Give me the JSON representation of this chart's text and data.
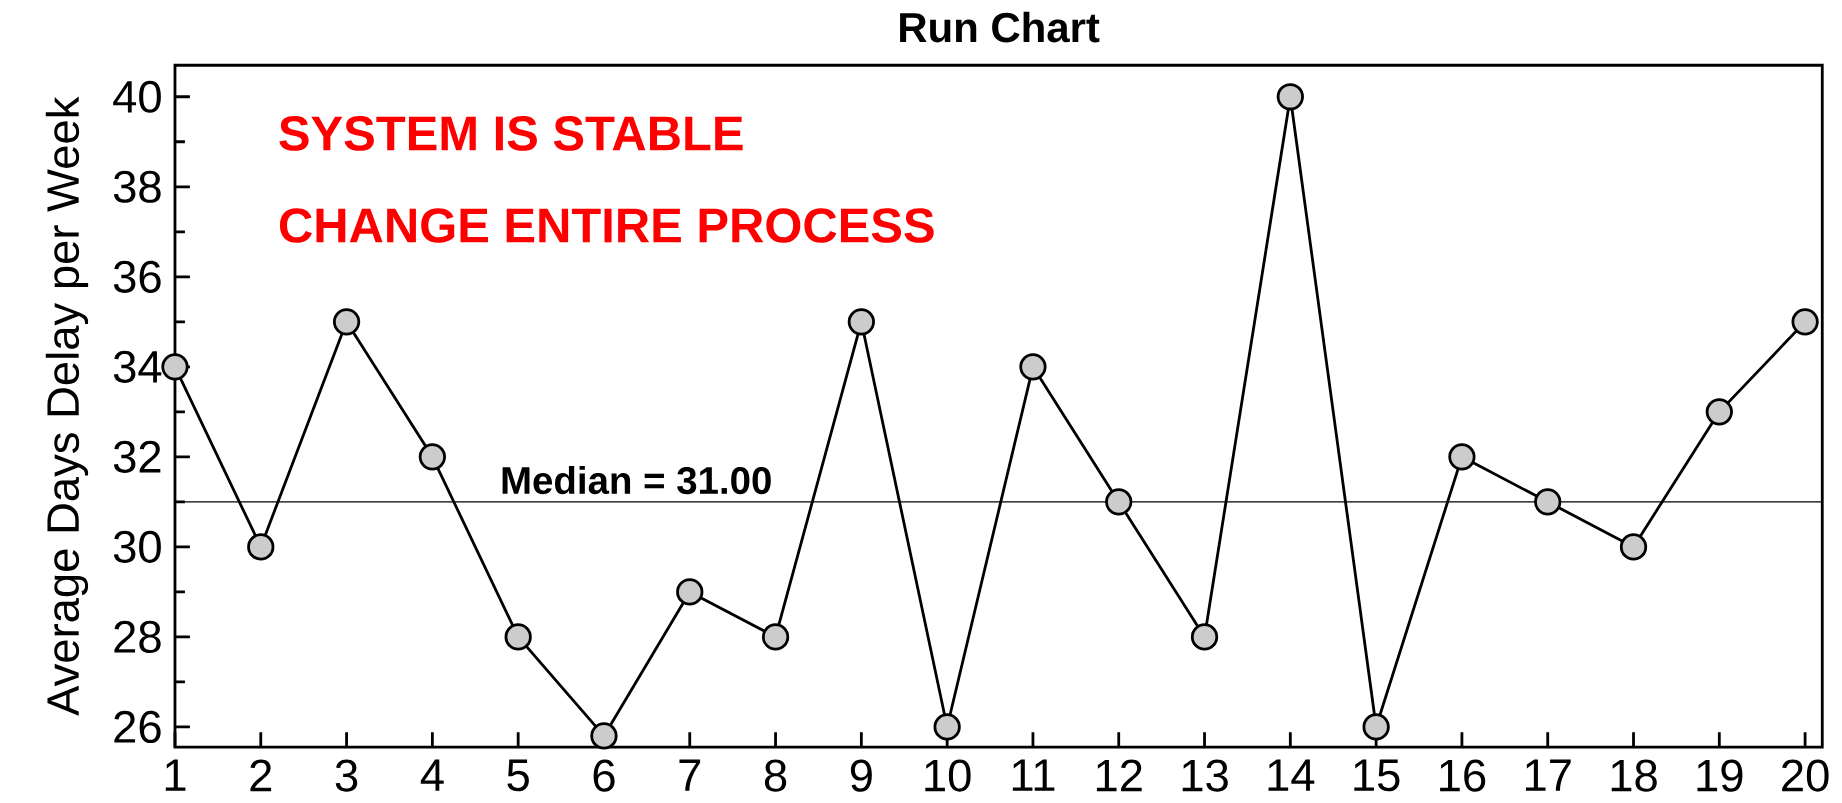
{
  "chart_data": {
    "type": "line",
    "title": "Run Chart",
    "ylabel": "Average Days Delay per Week",
    "x": [
      1,
      2,
      3,
      4,
      5,
      6,
      7,
      8,
      9,
      10,
      11,
      12,
      13,
      14,
      15,
      16,
      17,
      18,
      19,
      20
    ],
    "series": [
      {
        "color": "#000000",
        "values": [
          34,
          30,
          35,
          32,
          28,
          25.8,
          29,
          28,
          35,
          26,
          34,
          31,
          28,
          40,
          26,
          32,
          31,
          30,
          33,
          35
        ]
      }
    ],
    "xlim": [
      1,
      20.2
    ],
    "ylim": [
      25.55,
      40.7
    ],
    "xticks": [
      1,
      2,
      3,
      4,
      5,
      6,
      7,
      8,
      9,
      10,
      11,
      12,
      13,
      14,
      15,
      16,
      17,
      18,
      19,
      20
    ],
    "yticks": [
      26,
      28,
      30,
      32,
      34,
      36,
      38,
      40
    ],
    "ref_lines": [
      {
        "axis": "y",
        "value": 31,
        "label": "Median = 31.00",
        "color": "#000000"
      }
    ],
    "annotations": [
      "SYSTEM IS STABLE",
      "CHANGE ENTIRE PROCESS"
    ],
    "marker": "circle",
    "line_style": "solid",
    "grid": false
  }
}
